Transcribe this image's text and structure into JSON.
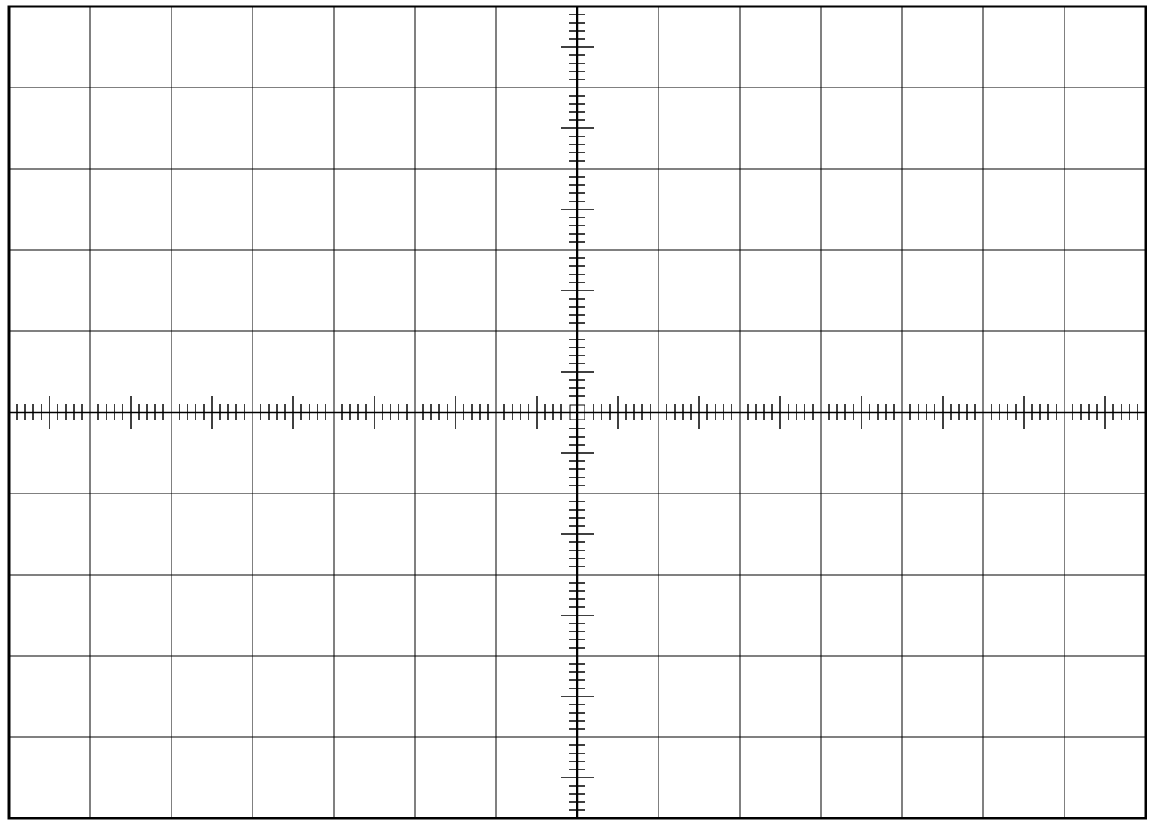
{
  "graticule": {
    "type": "oscilloscope-graticule",
    "divisions_x": 14,
    "divisions_y": 10,
    "minor_ticks_per_division": 5,
    "mid_ticks_per_division": 2,
    "colors": {
      "background": "#ffffff",
      "grid": "#000000",
      "axis": "#000000"
    }
  }
}
